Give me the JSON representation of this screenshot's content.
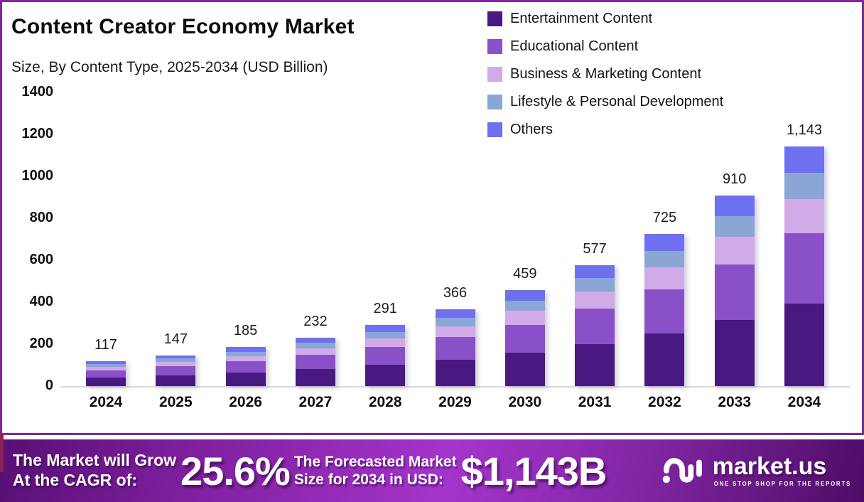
{
  "header": {
    "title": "Content Creator Economy Market",
    "subtitle": "Size, By Content Type, 2025-2034 (USD Billion)"
  },
  "legend": [
    {
      "label": "Entertainment Content",
      "color": "#481980"
    },
    {
      "label": "Educational Content",
      "color": "#8950c8"
    },
    {
      "label": "Business & Marketing Content",
      "color": "#d0abe8"
    },
    {
      "label": "Lifestyle & Personal Development",
      "color": "#8aa6d6"
    },
    {
      "label": "Others",
      "color": "#6e70f0"
    }
  ],
  "chart_data": {
    "type": "bar",
    "stacked": true,
    "title": "Content Creator Economy Market Size, By Content Type, 2025-2034 (USD Billion)",
    "xlabel": "",
    "ylabel": "USD Billion",
    "ylim": [
      0,
      1400
    ],
    "yticks": [
      0,
      200,
      400,
      600,
      800,
      1000,
      1200,
      1400
    ],
    "grid": false,
    "legend_position": "top-right",
    "categories": [
      "2024",
      "2025",
      "2026",
      "2027",
      "2028",
      "2029",
      "2030",
      "2031",
      "2032",
      "2033",
      "2034"
    ],
    "totals": [
      117,
      147,
      185,
      232,
      291,
      366,
      459,
      577,
      725,
      910,
      1143
    ],
    "totals_display": [
      "117",
      "147",
      "185",
      "232",
      "291",
      "366",
      "459",
      "577",
      "725",
      "910",
      "1,143"
    ],
    "series": [
      {
        "name": "Entertainment Content",
        "color": "#481980",
        "values": [
          40,
          51,
          64,
          80,
          100,
          126,
          158,
          199,
          250,
          314,
          394
        ]
      },
      {
        "name": "Educational Content",
        "color": "#8950c8",
        "values": [
          34,
          43,
          54,
          68,
          85,
          107,
          134,
          169,
          212,
          267,
          335
        ]
      },
      {
        "name": "Business & Marketing Content",
        "color": "#d0abe8",
        "values": [
          17,
          21,
          26,
          33,
          42,
          52,
          66,
          83,
          104,
          130,
          163
        ]
      },
      {
        "name": "Lifestyle & Personal Development",
        "color": "#8aa6d6",
        "values": [
          13,
          16,
          20,
          25,
          32,
          40,
          50,
          63,
          79,
          99,
          125
        ]
      },
      {
        "name": "Others",
        "color": "#6e70f0",
        "values": [
          13,
          16,
          21,
          26,
          32,
          41,
          51,
          63,
          80,
          100,
          126
        ]
      }
    ]
  },
  "footer": {
    "cagr_label_line1": "The Market will Grow",
    "cagr_label_line2": "At the CAGR of:",
    "cagr_value": "25.6%",
    "forecast_label_line1": "The Forecasted Market",
    "forecast_label_line2": "Size for 2034 in USD:",
    "forecast_value": "$1,143B",
    "brand": {
      "name": "market.us",
      "tagline": "ONE STOP SHOP FOR THE REPORTS"
    }
  }
}
